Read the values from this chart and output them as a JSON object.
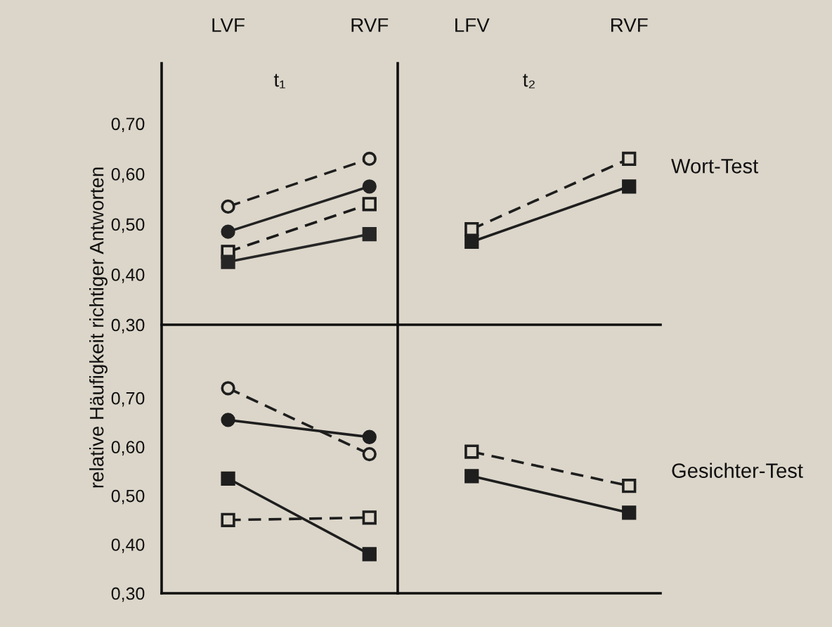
{
  "chart_data": [
    {
      "type": "line",
      "title": "t₁",
      "ylabel": "relative Häufigkeit richtiger Antworten",
      "categories": [
        "LVF",
        "RVF"
      ],
      "ylim": [
        0.3,
        0.82
      ],
      "yticks": [
        {
          "value": 0.3,
          "label": "0,30"
        },
        {
          "value": 0.4,
          "label": "0,40"
        },
        {
          "value": 0.5,
          "label": "0,50"
        },
        {
          "value": 0.6,
          "label": "0,60"
        },
        {
          "value": 0.7,
          "label": "0,70"
        }
      ],
      "grid": false,
      "legend": false,
      "series": [
        {
          "color": "#1e1e1e",
          "marker": "circle",
          "line_style": "dashed",
          "values": [
            0.535,
            0.63
          ]
        },
        {
          "color": "#222222",
          "marker": "circle",
          "line_style": "solid",
          "values": [
            0.485,
            0.575
          ]
        },
        {
          "color": "#1a1a1a",
          "marker": "square",
          "line_style": "dashed",
          "values": [
            0.445,
            0.54
          ]
        },
        {
          "color": "#262626",
          "marker": "square",
          "line_style": "solid",
          "values": [
            0.425,
            0.48
          ]
        }
      ]
    },
    {
      "type": "line",
      "title": "t₂",
      "categories": [
        "LFV",
        "RVF"
      ],
      "ylim": [
        0.3,
        0.82
      ],
      "tick_labels": "x",
      "annotations": [
        "Wort-Test"
      ],
      "grid": false,
      "legend": false,
      "series": [
        {
          "color": "#1e1e1e",
          "marker": "square",
          "line_style": "dashed",
          "values": [
            0.49,
            0.63
          ]
        },
        {
          "color": "#1e1e1e",
          "marker": "square",
          "line_style": "solid",
          "values": [
            0.465,
            0.575
          ]
        }
      ]
    },
    {
      "type": "line",
      "categories": [
        null,
        null
      ],
      "ylim": [
        0.3,
        0.85
      ],
      "tick_labels": "y",
      "yticks": [
        {
          "value": 0.3,
          "label": "0,30"
        },
        {
          "value": 0.4,
          "label": "0,40"
        },
        {
          "value": 0.5,
          "label": "0,50"
        },
        {
          "value": 0.6,
          "label": "0,60"
        },
        {
          "value": 0.7,
          "label": "0,70"
        }
      ],
      "grid": false,
      "legend": false,
      "series": [
        {
          "color": "#1e1e1e",
          "marker": "circle",
          "line_style": "dashed",
          "values": [
            0.72,
            0.585
          ]
        },
        {
          "color": "#1e1e1e",
          "marker": "circle",
          "line_style": "solid",
          "values": [
            0.655,
            0.62
          ]
        },
        {
          "color": "#1e1e1e",
          "marker": "square",
          "line_style": "solid",
          "values": [
            0.535,
            0.38
          ]
        },
        {
          "color": "#1e1e1e",
          "marker": "square",
          "line_style": "dashed",
          "values": [
            0.45,
            0.455
          ]
        }
      ]
    },
    {
      "type": "line",
      "categories": [
        null,
        null
      ],
      "ylim": [
        0.3,
        0.85
      ],
      "tick_labels": false,
      "annotations": [
        "Gesichter-Test"
      ],
      "grid": false,
      "legend": false,
      "series": [
        {
          "color": "#1e1e1e",
          "marker": "square",
          "line_style": "dashed",
          "values": [
            0.59,
            0.52
          ]
        },
        {
          "color": "#1e1e1e",
          "marker": "square",
          "line_style": "solid",
          "values": [
            0.54,
            0.465
          ]
        }
      ]
    }
  ]
}
